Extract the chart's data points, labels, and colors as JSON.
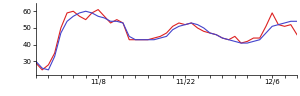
{
  "red_y": [
    29,
    25,
    28,
    35,
    50,
    59,
    60,
    57,
    55,
    59,
    61,
    57,
    53,
    55,
    53,
    43,
    43,
    43,
    43,
    44,
    45,
    47,
    51,
    53,
    52,
    53,
    50,
    48,
    47,
    46,
    44,
    43,
    45,
    41,
    42,
    44,
    44,
    51,
    59,
    52,
    51,
    52,
    46
  ],
  "blue_y": [
    30,
    26,
    25,
    33,
    47,
    54,
    57,
    59,
    60,
    59,
    57,
    56,
    54,
    54,
    53,
    45,
    43,
    43,
    43,
    43,
    44,
    45,
    49,
    51,
    52,
    53,
    52,
    50,
    47,
    46,
    44,
    43,
    42,
    41,
    41,
    42,
    43,
    47,
    51,
    52,
    53,
    54,
    54
  ],
  "xtick_labels": [
    "11/8",
    "11/22",
    "12/6"
  ],
  "xtick_positions": [
    10,
    24,
    38
  ],
  "ytick_labels": [
    "30",
    "40",
    "50",
    "60"
  ],
  "ytick_positions": [
    30,
    40,
    50,
    60
  ],
  "ylim": [
    22,
    65
  ],
  "xlim": [
    0,
    42
  ],
  "red_color": "#dd2222",
  "blue_color": "#4444cc",
  "linewidth": 0.8,
  "bg_color": "#ffffff"
}
